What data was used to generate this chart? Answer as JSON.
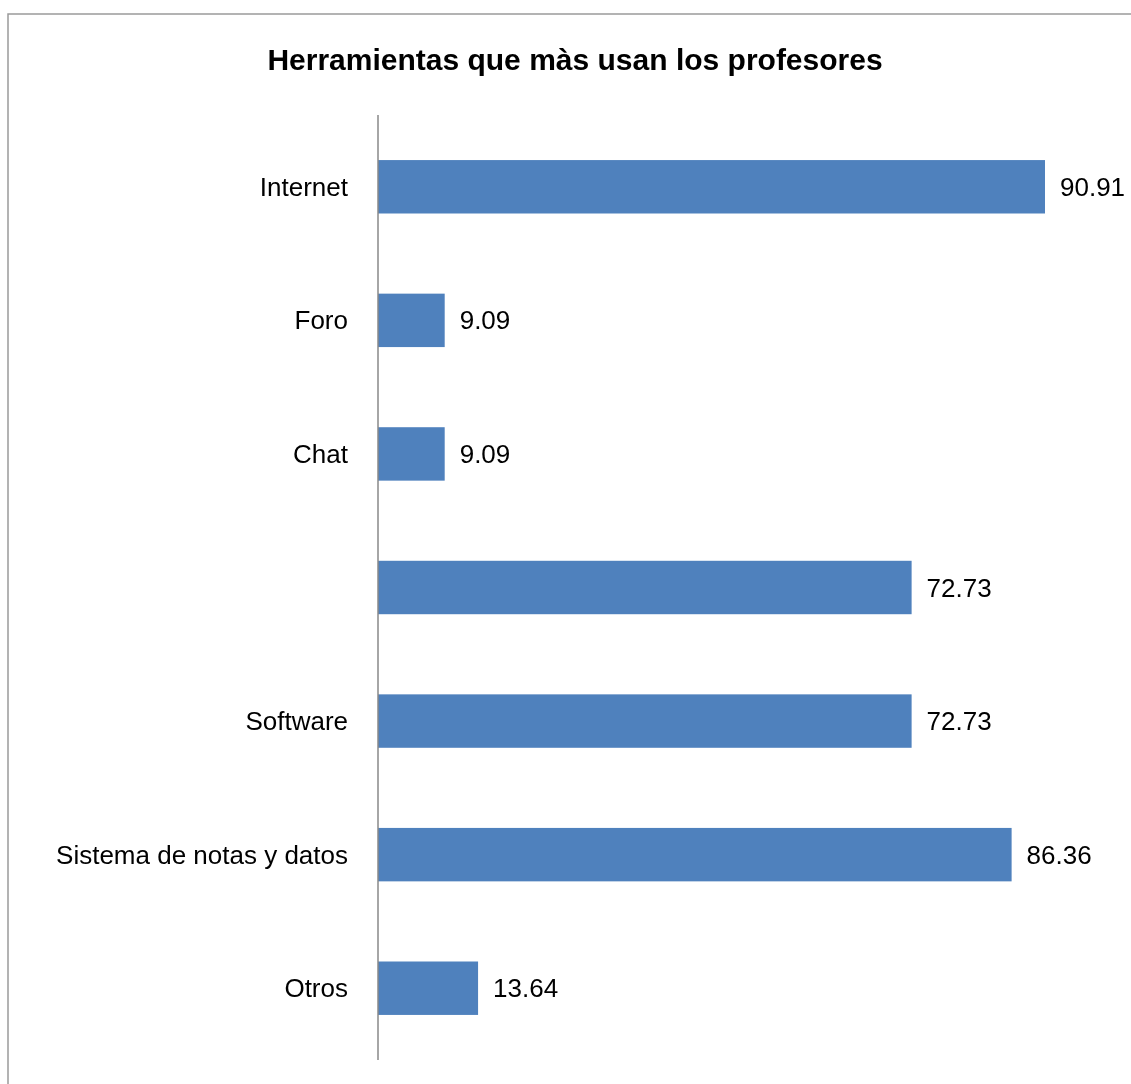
{
  "chart_data": {
    "type": "bar",
    "orientation": "horizontal",
    "title": "Herramientas que màs usan los profesores",
    "categories": [
      "Internet",
      "Foro",
      "Chat",
      null,
      "Software",
      "Sistema de notas y datos",
      "Otros"
    ],
    "values": [
      90.91,
      9.09,
      9.09,
      72.73,
      72.73,
      86.36,
      13.64
    ],
    "color": "#4f81bd",
    "data_labels": true
  }
}
